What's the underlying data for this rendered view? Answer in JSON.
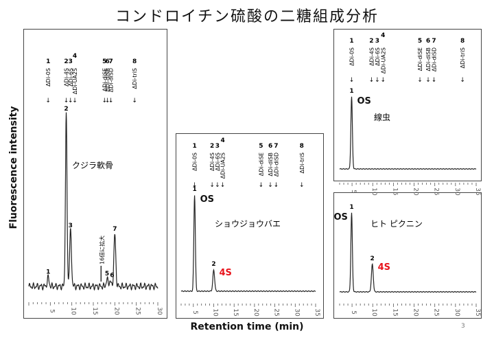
{
  "title": "コンドロイチン硫酸の二糖組成分析",
  "ylabel": "Fluorescence intensity",
  "xlabel": "Retention time (min)",
  "page_number": "3",
  "markers": [
    {
      "num": "1",
      "label": "ΔDi-0S"
    },
    {
      "num": "2",
      "label": "ΔDi-4S"
    },
    {
      "num": "3",
      "label": "ΔDi-6S"
    },
    {
      "num": "4",
      "label": "ΔDi-UA2S"
    },
    {
      "num": "5",
      "label": "ΔDi-diSE"
    },
    {
      "num": "6",
      "label": "ΔDi-diSB"
    },
    {
      "num": "7",
      "label": "ΔDi-diSD"
    },
    {
      "num": "8",
      "label": "ΔDi-triS"
    }
  ],
  "colors": {
    "line": "#222222",
    "highlight": "#e8141c",
    "frame": "#444444"
  },
  "chart_data": [
    {
      "type": "line",
      "name": "クジラ軟骨",
      "x_range": [
        0,
        30
      ],
      "x_ticks": [
        "5",
        "10",
        "15",
        "20",
        "25",
        "30"
      ],
      "marker_times": [
        4.5,
        8.7,
        9.7,
        10.7,
        17.6,
        18.3,
        19.1,
        24.6
      ],
      "peaks": [
        {
          "label": "1",
          "t": 4.5,
          "h": 0.05
        },
        {
          "label": "2",
          "t": 8.7,
          "h": 1.0
        },
        {
          "label": "3",
          "t": 9.7,
          "h": 0.32
        },
        {
          "label": "5",
          "t": 18.2,
          "h": 0.04
        },
        {
          "label": "6",
          "t": 18.9,
          "h": 0.03
        },
        {
          "label": "7",
          "t": 20.0,
          "h": 0.3
        }
      ],
      "annotation": "16倍に拡大"
    },
    {
      "type": "line",
      "name": "ショウジョウバエ",
      "x_range": [
        2,
        35
      ],
      "x_ticks": [
        "5",
        "10",
        "15",
        "20",
        "25",
        "30",
        "35"
      ],
      "marker_times": [
        5.3,
        9.6,
        10.9,
        12.2,
        21.6,
        23.9,
        25.3,
        31.6
      ],
      "peaks": [
        {
          "label": "1",
          "t": 5.3,
          "h": 1.0
        },
        {
          "label": "2",
          "t": 10.0,
          "h": 0.22
        }
      ],
      "peak_tags": [
        {
          "t": 5.3,
          "text": "OS",
          "highlight": false
        },
        {
          "t": 10.0,
          "text": "4S",
          "highlight": true
        }
      ]
    },
    {
      "type": "line",
      "name": "線虫",
      "x_range": [
        2,
        35
      ],
      "x_ticks": [
        "5",
        "10",
        "15",
        "20",
        "25",
        "30",
        "35"
      ],
      "marker_times": [
        4.9,
        9.7,
        11.1,
        12.5,
        21.4,
        23.4,
        24.8,
        31.7
      ],
      "peaks": [
        {
          "label": "1",
          "t": 4.9,
          "h": 1.0
        }
      ],
      "peak_tags": [
        {
          "t": 4.9,
          "text": "OS",
          "highlight": false
        }
      ]
    },
    {
      "type": "line",
      "name": "ヒト ピクニン",
      "x_range": [
        2,
        35
      ],
      "x_ticks": [
        "5",
        "10",
        "15",
        "20",
        "25",
        "30",
        "35"
      ],
      "marker_times": [],
      "peaks": [
        {
          "label": "1",
          "t": 4.9,
          "h": 1.0
        },
        {
          "label": "2",
          "t": 9.9,
          "h": 0.35
        }
      ],
      "peak_tags": [
        {
          "t": 4.9,
          "text": "OS",
          "highlight": false
        },
        {
          "t": 9.9,
          "text": "4S",
          "highlight": true
        }
      ]
    }
  ]
}
